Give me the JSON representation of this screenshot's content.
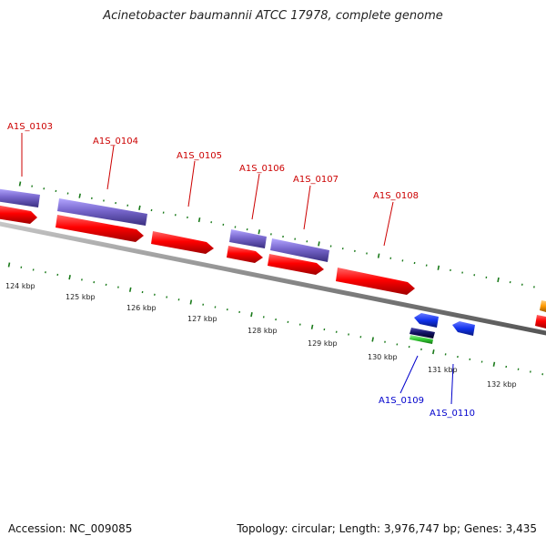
{
  "title": "Acinetobacter baumannii ATCC 17978, complete genome",
  "footer": {
    "accession": "Accession: NC_009085",
    "summary": "Topology: circular; Length: 3,976,747 bp; Genes: 3,435"
  },
  "scale": {
    "tick_labels": [
      "124 kbp",
      "125 kbp",
      "126 kbp",
      "127 kbp",
      "128 kbp",
      "129 kbp",
      "130 kbp",
      "131 kbp",
      "132 kbp"
    ]
  },
  "genes": {
    "forward": [
      "A1S_0103",
      "A1S_0104",
      "A1S_0105",
      "A1S_0106",
      "A1S_0107",
      "A1S_0108"
    ],
    "reverse": [
      "A1S_0109",
      "A1S_0110"
    ]
  },
  "colors": {
    "forward_label": "#cc0000",
    "reverse_label": "#0000cc",
    "cds": "#ff0000",
    "gene_feature": "#7766cc",
    "reverse_cds": "#1133ee",
    "rna_green": "#33cc33",
    "navy": "#101060",
    "orange": "#ff9900",
    "backbone": "#8a8a8a",
    "tick": "#1a7a1a"
  }
}
